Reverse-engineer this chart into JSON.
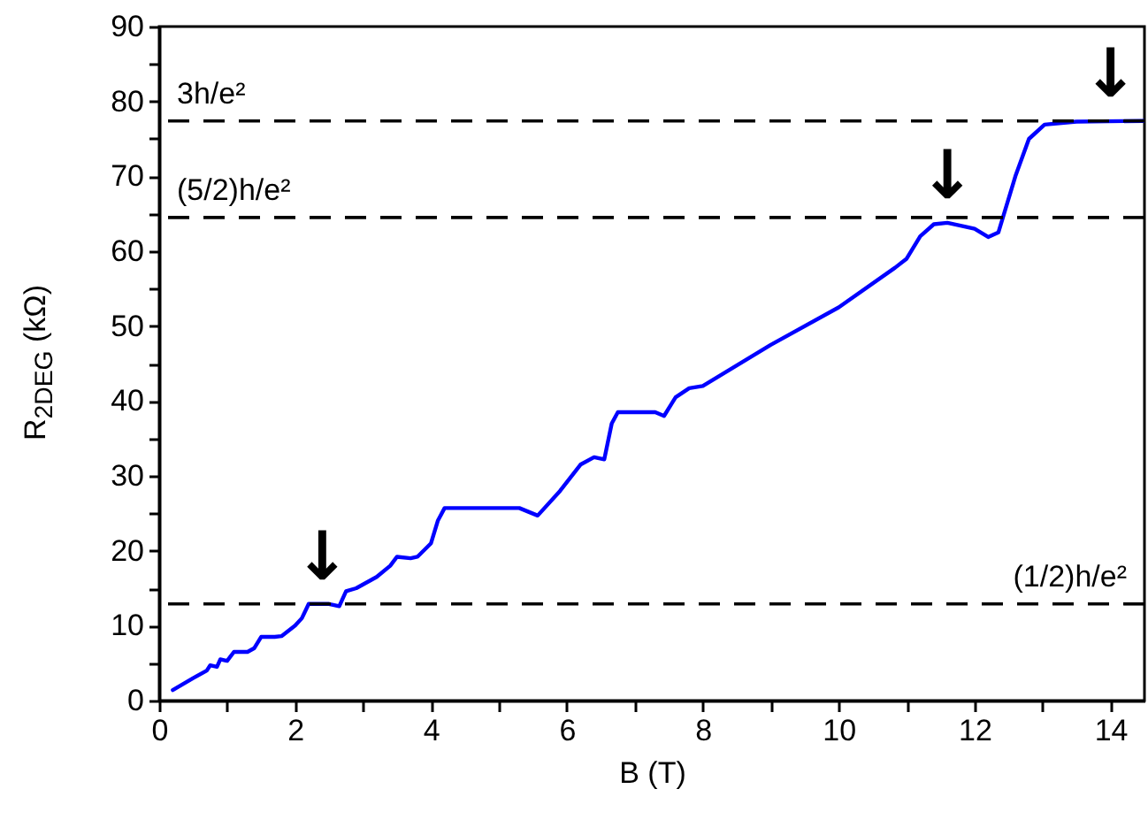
{
  "chart_data": {
    "type": "line",
    "xlabel": "B (T)",
    "ylabel": "R$_{2DEG}$ (kΩ)",
    "xlim": [
      0,
      14.5
    ],
    "ylim": [
      0,
      90
    ],
    "xticks": [
      0,
      {
        "value": 1,
        "label": null
      },
      2,
      {
        "value": 3,
        "label": null
      },
      4,
      {
        "value": 5,
        "label": null
      },
      6,
      {
        "value": 7,
        "label": null
      },
      8,
      {
        "value": 9,
        "label": null
      },
      10,
      {
        "value": 11,
        "label": null
      },
      12,
      {
        "value": 13,
        "label": null
      },
      14
    ],
    "yticks": [
      0,
      {
        "value": 5,
        "label": null
      },
      10,
      {
        "value": 15,
        "label": null
      },
      20,
      {
        "value": 25,
        "label": null
      },
      30,
      {
        "value": 35,
        "label": null
      },
      40,
      {
        "value": 45,
        "label": null
      },
      50,
      {
        "value": 55,
        "label": null
      },
      60,
      {
        "value": 65,
        "label": null
      },
      70,
      {
        "value": 75,
        "label": null
      },
      80,
      {
        "value": 85,
        "label": null
      },
      90
    ],
    "grid": false,
    "marker": "none",
    "line_style": "solid",
    "series": [
      {
        "color": "#0000ff",
        "x": [
          0.2,
          0.5,
          0.7,
          0.75,
          0.85,
          0.9,
          1.0,
          1.1,
          1.3,
          1.4,
          1.5,
          1.7,
          1.8,
          2.0,
          2.1,
          2.2,
          2.5,
          2.65,
          2.75,
          2.9,
          3.2,
          3.4,
          3.5,
          3.7,
          3.8,
          4.0,
          4.1,
          4.2,
          5.0,
          5.3,
          5.57,
          5.9,
          6.2,
          6.4,
          6.55,
          6.66,
          6.75,
          7.3,
          7.43,
          7.6,
          7.8,
          8.0,
          9.0,
          10.0,
          10.83,
          11.0,
          11.2,
          11.4,
          11.6,
          12.0,
          12.2,
          12.35,
          12.6,
          12.8,
          13.03,
          13.5,
          14.5
        ],
        "values": [
          1.4,
          3,
          4,
          4.7,
          4.5,
          5.5,
          5.3,
          6.5,
          6.5,
          7,
          8.5,
          8.5,
          8.6,
          10,
          11,
          12.9,
          12.9,
          12.6,
          14.6,
          15,
          16.5,
          18,
          19.2,
          19,
          19.2,
          21,
          24,
          25.7,
          25.7,
          25.7,
          24.7,
          28,
          31.5,
          32.5,
          32.2,
          37,
          38.5,
          38.5,
          38,
          40.5,
          41.7,
          42,
          47.5,
          52.5,
          57.8,
          59,
          62,
          63.6,
          63.8,
          63,
          61.9,
          62.5,
          70,
          75,
          76.9,
          77.3,
          77.4
        ]
      }
    ],
    "ref_lines": [
      {
        "axis": "y",
        "value": 12.9,
        "label": "(1/2)h/e²",
        "color": "#000000",
        "line_style": "dashed"
      },
      {
        "axis": "y",
        "value": 64.5,
        "label": "(5/2)h/e²",
        "color": "#000000",
        "line_style": "dashed"
      },
      {
        "axis": "y",
        "value": 77.4,
        "label": "3h/e²",
        "color": "#000000",
        "line_style": "dashed"
      }
    ],
    "annotations": [
      {
        "text": "↓",
        "x": 2.4,
        "y": 12.9
      },
      {
        "text": "↓",
        "x": 11.6,
        "y": 63.8
      },
      {
        "text": "↓",
        "x": 14.0,
        "y": 77.4
      }
    ]
  }
}
